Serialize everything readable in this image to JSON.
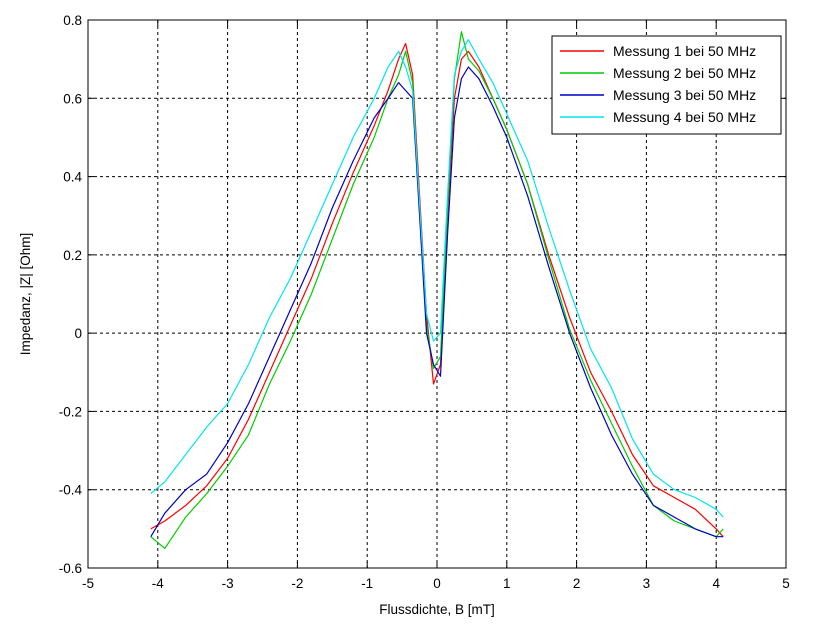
{
  "chart_data": {
    "type": "line",
    "title": "",
    "xlabel": "Flussdichte, B [mT]",
    "ylabel": "Impedanz, |Z| [Ohm]",
    "xlim": [
      -5,
      5
    ],
    "ylim": [
      -0.6,
      0.8
    ],
    "xticks": [
      -5,
      -4,
      -3,
      -2,
      -1,
      0,
      1,
      2,
      3,
      4,
      5
    ],
    "yticks": [
      -0.6,
      -0.4,
      -0.2,
      0,
      0.2,
      0.4,
      0.6,
      0.8
    ],
    "xtick_labels": [
      "-5",
      "-4",
      "-3",
      "-2",
      "-1",
      "0",
      "1",
      "2",
      "3",
      "4",
      "5"
    ],
    "ytick_labels": [
      "-0.6",
      "-0.4",
      "-0.2",
      "0",
      "0.2",
      "0.4",
      "0.6",
      "0.8"
    ],
    "grid": true,
    "legend_position": "top-right",
    "series": [
      {
        "name": "Messung 1 bei 50 MHz",
        "color": "#ff0000",
        "x": [
          -4.1,
          -3.9,
          -3.6,
          -3.3,
          -3.0,
          -2.7,
          -2.4,
          -2.1,
          -1.8,
          -1.5,
          -1.2,
          -0.9,
          -0.7,
          -0.55,
          -0.45,
          -0.35,
          -0.25,
          -0.15,
          -0.05,
          0.05,
          0.15,
          0.25,
          0.35,
          0.45,
          0.6,
          0.8,
          1.0,
          1.3,
          1.6,
          1.9,
          2.2,
          2.5,
          2.8,
          3.1,
          3.4,
          3.7,
          4.0,
          4.1
        ],
        "y": [
          -0.5,
          -0.48,
          -0.44,
          -0.39,
          -0.32,
          -0.22,
          -0.1,
          0.02,
          0.14,
          0.28,
          0.41,
          0.53,
          0.62,
          0.7,
          0.74,
          0.66,
          0.35,
          0.05,
          -0.13,
          -0.08,
          0.3,
          0.6,
          0.7,
          0.72,
          0.68,
          0.6,
          0.52,
          0.38,
          0.2,
          0.04,
          -0.1,
          -0.2,
          -0.31,
          -0.39,
          -0.42,
          -0.45,
          -0.5,
          -0.52
        ]
      },
      {
        "name": "Messung 2 bei 50 MHz",
        "color": "#00cc00",
        "x": [
          -4.1,
          -3.9,
          -3.6,
          -3.3,
          -3.0,
          -2.7,
          -2.4,
          -2.1,
          -1.8,
          -1.5,
          -1.2,
          -0.9,
          -0.7,
          -0.55,
          -0.45,
          -0.35,
          -0.25,
          -0.15,
          -0.05,
          0.05,
          0.15,
          0.25,
          0.35,
          0.45,
          0.6,
          0.8,
          1.0,
          1.3,
          1.6,
          1.9,
          2.2,
          2.5,
          2.8,
          3.1,
          3.4,
          3.7,
          4.0,
          4.1
        ],
        "y": [
          -0.52,
          -0.55,
          -0.47,
          -0.41,
          -0.34,
          -0.26,
          -0.13,
          -0.02,
          0.1,
          0.24,
          0.38,
          0.5,
          0.6,
          0.66,
          0.72,
          0.64,
          0.32,
          0.02,
          -0.09,
          -0.06,
          0.32,
          0.65,
          0.77,
          0.7,
          0.67,
          0.6,
          0.52,
          0.38,
          0.19,
          0.01,
          -0.12,
          -0.23,
          -0.34,
          -0.44,
          -0.48,
          -0.5,
          -0.52,
          -0.5
        ]
      },
      {
        "name": "Messung 3 bei 50 MHz",
        "color": "#0000cc",
        "x": [
          -4.1,
          -3.9,
          -3.6,
          -3.3,
          -3.0,
          -2.7,
          -2.4,
          -2.1,
          -1.8,
          -1.5,
          -1.2,
          -0.9,
          -0.7,
          -0.55,
          -0.45,
          -0.35,
          -0.25,
          -0.15,
          -0.05,
          0.05,
          0.15,
          0.25,
          0.35,
          0.45,
          0.6,
          0.8,
          1.0,
          1.3,
          1.6,
          1.9,
          2.2,
          2.5,
          2.8,
          3.1,
          3.4,
          3.7,
          4.0,
          4.1
        ],
        "y": [
          -0.52,
          -0.46,
          -0.4,
          -0.36,
          -0.28,
          -0.18,
          -0.06,
          0.06,
          0.18,
          0.32,
          0.44,
          0.55,
          0.6,
          0.64,
          0.62,
          0.6,
          0.3,
          0.0,
          -0.08,
          -0.11,
          0.25,
          0.55,
          0.65,
          0.68,
          0.65,
          0.58,
          0.5,
          0.35,
          0.17,
          0.0,
          -0.14,
          -0.26,
          -0.36,
          -0.44,
          -0.47,
          -0.5,
          -0.52,
          -0.52
        ]
      },
      {
        "name": "Messung 4 bei 50 MHz",
        "color": "#00e5ee",
        "x": [
          -4.1,
          -3.9,
          -3.6,
          -3.3,
          -3.0,
          -2.7,
          -2.4,
          -2.1,
          -1.8,
          -1.5,
          -1.2,
          -0.9,
          -0.7,
          -0.55,
          -0.45,
          -0.35,
          -0.25,
          -0.15,
          -0.05,
          0.05,
          0.15,
          0.25,
          0.35,
          0.45,
          0.6,
          0.8,
          1.0,
          1.3,
          1.6,
          1.9,
          2.2,
          2.5,
          2.8,
          3.1,
          3.4,
          3.7,
          4.0,
          4.1
        ],
        "y": [
          -0.41,
          -0.38,
          -0.31,
          -0.24,
          -0.18,
          -0.08,
          0.04,
          0.14,
          0.26,
          0.38,
          0.5,
          0.6,
          0.68,
          0.72,
          0.68,
          0.62,
          0.33,
          0.05,
          -0.02,
          0.0,
          0.35,
          0.66,
          0.72,
          0.75,
          0.7,
          0.64,
          0.56,
          0.44,
          0.27,
          0.11,
          -0.04,
          -0.14,
          -0.27,
          -0.36,
          -0.4,
          -0.42,
          -0.45,
          -0.47
        ]
      }
    ]
  }
}
